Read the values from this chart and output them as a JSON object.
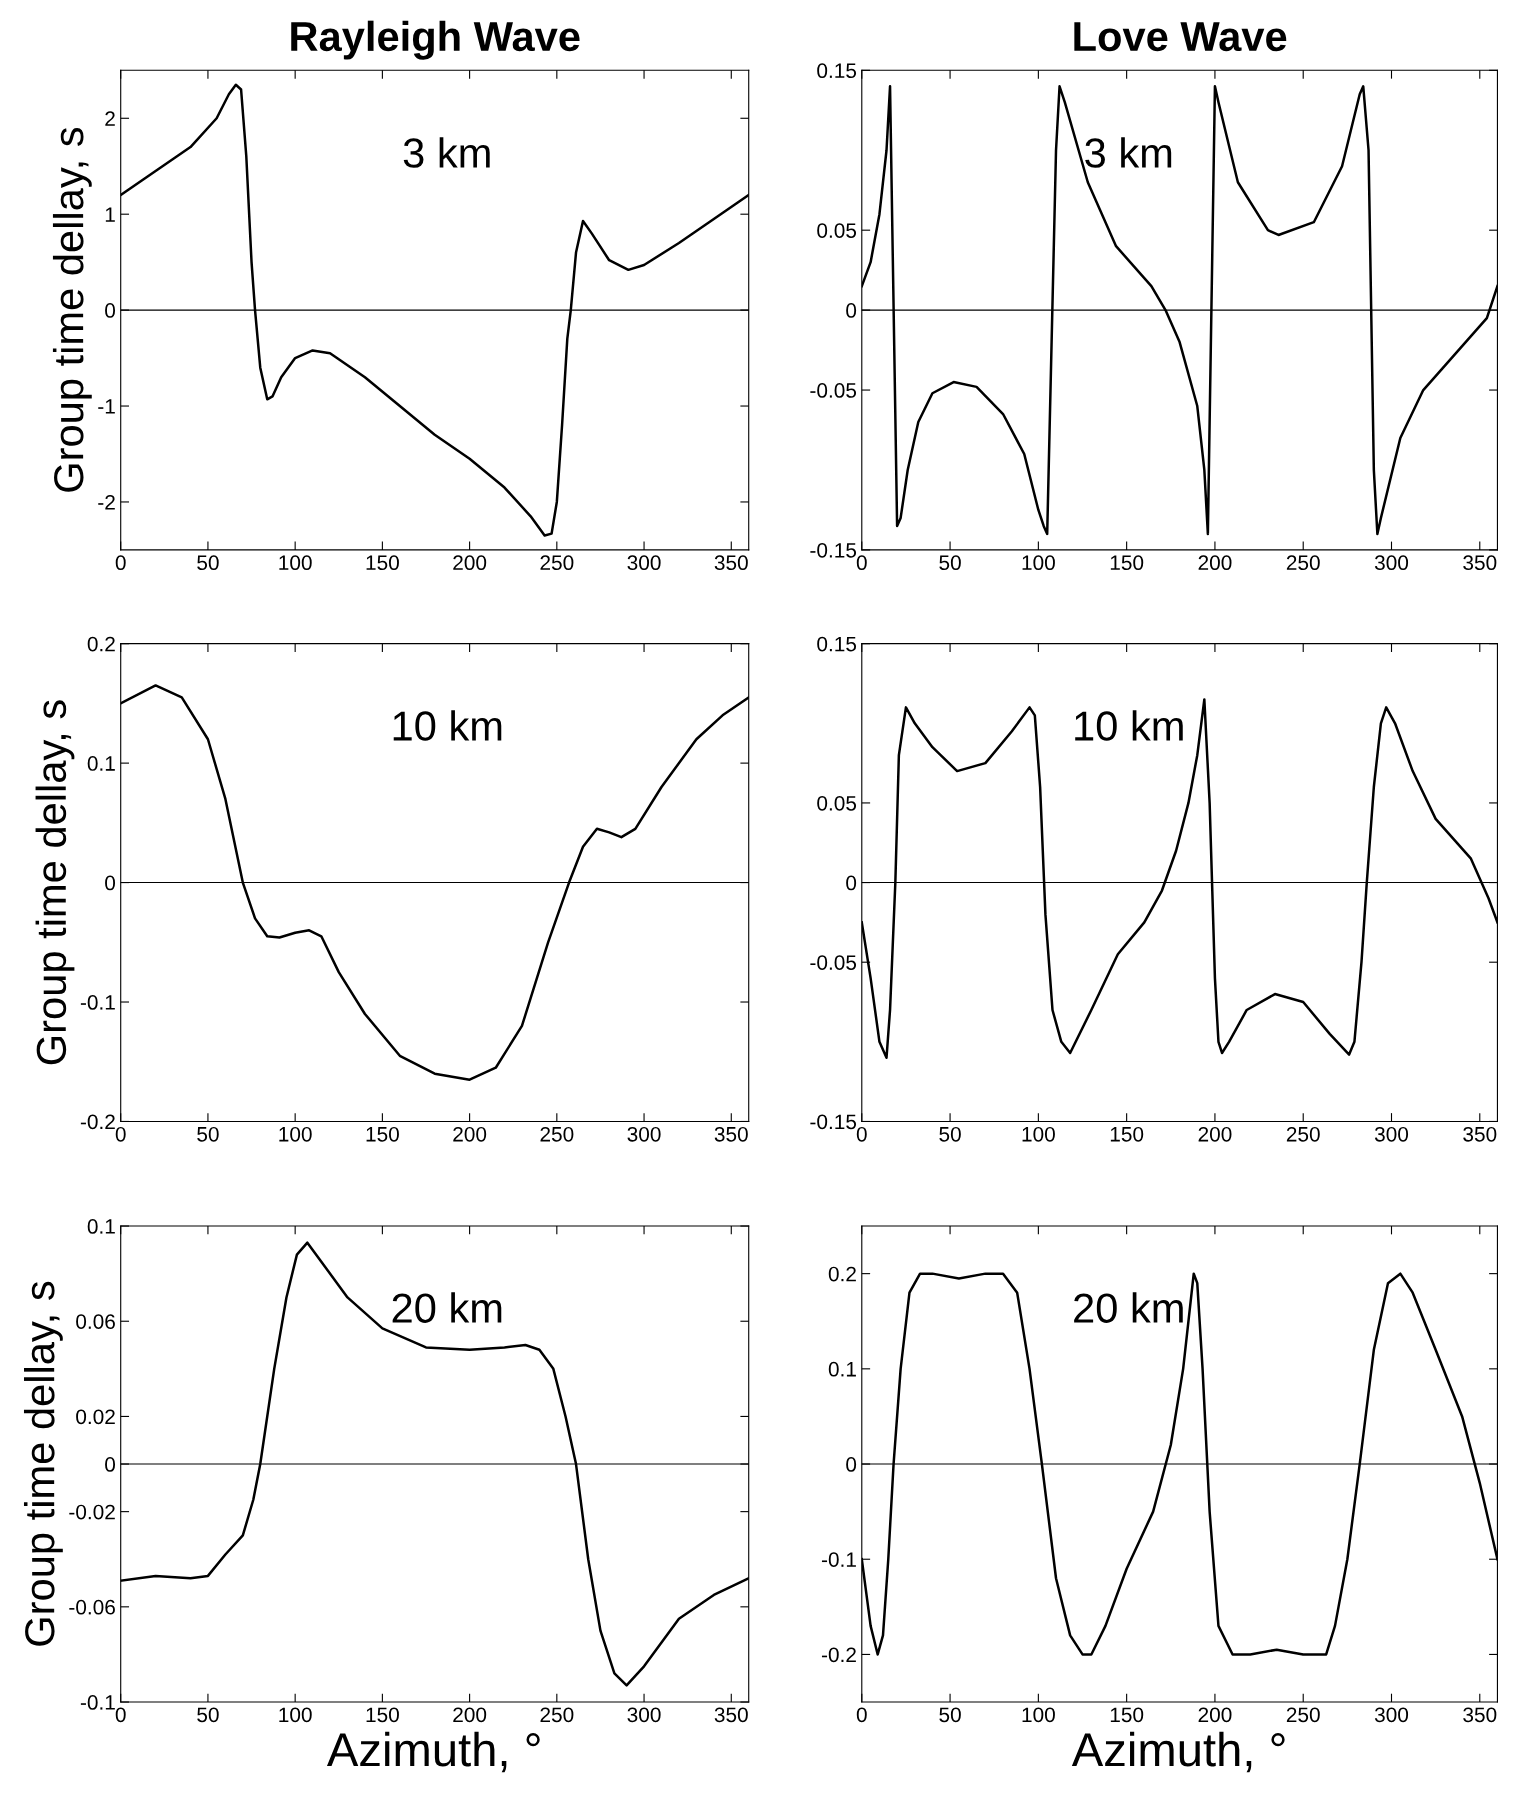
{
  "chart_data": [
    {
      "type": "line",
      "title": "Rayleigh Wave",
      "ylabel": "Group time dellay, s",
      "annotations": [
        "3 km"
      ],
      "xlim": [
        0,
        360
      ],
      "xticks": [
        0,
        50,
        100,
        150,
        200,
        250,
        300,
        350
      ],
      "ylim": [
        -2.5,
        2.5
      ],
      "yticks": [
        -2,
        -1,
        0,
        1,
        2
      ],
      "ref_lines": [
        {
          "axis": "y",
          "value": 0,
          "label": null
        }
      ],
      "series": [
        {
          "color": "#000000",
          "x": [
            0,
            20,
            40,
            55,
            62,
            66,
            69,
            72,
            75,
            77,
            80,
            84,
            87,
            92,
            100,
            110,
            120,
            140,
            160,
            180,
            200,
            220,
            235,
            243,
            247,
            250,
            253,
            256,
            258,
            261,
            265,
            270,
            280,
            291,
            300,
            320,
            340,
            360
          ],
          "values": [
            1.2,
            1.45,
            1.7,
            2.0,
            2.25,
            2.35,
            2.3,
            1.6,
            0.5,
            0.0,
            -0.6,
            -0.93,
            -0.9,
            -0.7,
            -0.5,
            -0.42,
            -0.45,
            -0.7,
            -1.0,
            -1.3,
            -1.55,
            -1.85,
            -2.15,
            -2.35,
            -2.33,
            -2.0,
            -1.2,
            -0.3,
            0.0,
            0.6,
            0.93,
            0.8,
            0.52,
            0.42,
            0.47,
            0.7,
            0.95,
            1.2
          ]
        }
      ]
    },
    {
      "type": "line",
      "title": "Love Wave",
      "annotations": [
        "3 km"
      ],
      "xlim": [
        0,
        360
      ],
      "xticks": [
        0,
        50,
        100,
        150,
        200,
        250,
        300,
        350
      ],
      "ylim": [
        -0.15,
        0.15
      ],
      "yticks": [
        -0.15,
        -0.05,
        0,
        0.05,
        0.15
      ],
      "ref_lines": [
        {
          "axis": "y",
          "value": 0,
          "label": null
        }
      ],
      "series": [
        {
          "color": "#000000",
          "x": [
            0,
            5,
            10,
            14,
            16,
            20,
            22,
            26,
            32,
            40,
            52,
            65,
            80,
            92,
            100,
            103,
            105,
            110,
            112,
            115,
            128,
            144,
            164,
            172,
            180,
            190,
            194,
            196,
            200,
            202,
            213,
            230,
            236,
            256,
            272,
            282,
            284,
            287,
            290,
            292,
            294,
            305,
            318,
            338,
            354,
            360
          ],
          "values": [
            0.015,
            0.03,
            0.06,
            0.1,
            0.14,
            -0.135,
            -0.13,
            -0.1,
            -0.07,
            -0.052,
            -0.045,
            -0.048,
            -0.065,
            -0.09,
            -0.125,
            -0.135,
            -0.14,
            0.1,
            0.14,
            0.13,
            0.08,
            0.04,
            0.015,
            0.0,
            -0.02,
            -0.06,
            -0.1,
            -0.14,
            0.14,
            0.13,
            0.08,
            0.05,
            0.047,
            0.055,
            0.09,
            0.135,
            0.14,
            0.1,
            -0.1,
            -0.14,
            -0.13,
            -0.08,
            -0.05,
            -0.025,
            -0.005,
            0.015
          ]
        }
      ]
    },
    {
      "type": "line",
      "ylabel": "Group time dellay, s",
      "annotations": [
        "10 km"
      ],
      "xlim": [
        0,
        360
      ],
      "xticks": [
        0,
        50,
        100,
        150,
        200,
        250,
        300,
        350
      ],
      "ylim": [
        -0.2,
        0.2
      ],
      "yticks": [
        -0.2,
        -0.1,
        0,
        0.1,
        0.2
      ],
      "ref_lines": [
        {
          "axis": "y",
          "value": 0,
          "label": null
        }
      ],
      "series": [
        {
          "color": "#000000",
          "x": [
            0,
            20,
            35,
            50,
            60,
            70,
            77,
            84,
            91,
            100,
            108,
            115,
            125,
            140,
            160,
            180,
            200,
            215,
            230,
            245,
            257,
            265,
            273,
            280,
            287,
            295,
            310,
            330,
            345,
            360
          ],
          "values": [
            0.15,
            0.165,
            0.155,
            0.12,
            0.07,
            0.0,
            -0.03,
            -0.045,
            -0.046,
            -0.042,
            -0.04,
            -0.045,
            -0.075,
            -0.11,
            -0.145,
            -0.16,
            -0.165,
            -0.155,
            -0.12,
            -0.05,
            0.0,
            0.03,
            0.045,
            0.042,
            0.038,
            0.045,
            0.08,
            0.12,
            0.14,
            0.155
          ]
        }
      ]
    },
    {
      "type": "line",
      "annotations": [
        "10 km"
      ],
      "xlim": [
        0,
        360
      ],
      "xticks": [
        0,
        50,
        100,
        150,
        200,
        250,
        300,
        350
      ],
      "ylim": [
        -0.15,
        0.15
      ],
      "yticks": [
        -0.15,
        -0.05,
        0,
        0.05,
        0.15
      ],
      "ref_lines": [
        {
          "axis": "y",
          "value": 0,
          "label": null
        }
      ],
      "series": [
        {
          "color": "#000000",
          "x": [
            0,
            5,
            10,
            14,
            16,
            19,
            21,
            25,
            30,
            40,
            54,
            70,
            85,
            95,
            98,
            101,
            104,
            108,
            113,
            118,
            130,
            145,
            160,
            170,
            178,
            185,
            190,
            194,
            197,
            200,
            202,
            204,
            208,
            218,
            234,
            250,
            265,
            276,
            279,
            283,
            286,
            290,
            294,
            297,
            302,
            312,
            325,
            345,
            355,
            360
          ],
          "values": [
            -0.025,
            -0.06,
            -0.1,
            -0.11,
            -0.08,
            0.0,
            0.08,
            0.11,
            0.1,
            0.085,
            0.07,
            0.075,
            0.095,
            0.11,
            0.105,
            0.06,
            -0.02,
            -0.08,
            -0.1,
            -0.107,
            -0.08,
            -0.045,
            -0.025,
            -0.005,
            0.02,
            0.05,
            0.08,
            0.115,
            0.05,
            -0.06,
            -0.1,
            -0.107,
            -0.1,
            -0.08,
            -0.07,
            -0.075,
            -0.095,
            -0.108,
            -0.1,
            -0.05,
            0.0,
            0.06,
            0.1,
            0.11,
            0.1,
            0.07,
            0.04,
            0.015,
            -0.01,
            -0.025
          ]
        }
      ]
    },
    {
      "type": "line",
      "ylabel": "Group time dellay, s",
      "xlabel": "Azimuth, °",
      "annotations": [
        "20 km"
      ],
      "xlim": [
        0,
        360
      ],
      "xticks": [
        0,
        50,
        100,
        150,
        200,
        250,
        300,
        350
      ],
      "ylim": [
        -0.1,
        0.1
      ],
      "yticks": [
        -0.1,
        -0.06,
        -0.02,
        0,
        0.02,
        0.06,
        0.1
      ],
      "ref_lines": [
        {
          "axis": "y",
          "value": 0,
          "label": null
        }
      ],
      "series": [
        {
          "color": "#000000",
          "x": [
            0,
            20,
            40,
            50,
            60,
            70,
            76,
            80,
            88,
            95,
            101,
            107,
            115,
            130,
            150,
            175,
            200,
            220,
            232,
            240,
            248,
            255,
            261,
            268,
            275,
            283,
            290,
            300,
            320,
            340,
            360
          ],
          "values": [
            -0.049,
            -0.047,
            -0.048,
            -0.047,
            -0.038,
            -0.03,
            -0.015,
            0.0,
            0.04,
            0.07,
            0.088,
            0.093,
            0.085,
            0.07,
            0.057,
            0.049,
            0.048,
            0.049,
            0.05,
            0.048,
            0.04,
            0.02,
            0.0,
            -0.04,
            -0.07,
            -0.088,
            -0.093,
            -0.085,
            -0.065,
            -0.055,
            -0.048
          ]
        }
      ]
    },
    {
      "type": "line",
      "xlabel": "Azimuth, °",
      "annotations": [
        "20 km"
      ],
      "xlim": [
        0,
        360
      ],
      "xticks": [
        0,
        50,
        100,
        150,
        200,
        250,
        300,
        350
      ],
      "ylim": [
        -0.25,
        0.25
      ],
      "yticks": [
        -0.2,
        -0.1,
        0,
        0.1,
        0.2
      ],
      "ref_lines": [
        {
          "axis": "y",
          "value": 0,
          "label": null
        }
      ],
      "series": [
        {
          "color": "#000000",
          "x": [
            0,
            5,
            9,
            12,
            15,
            18,
            22,
            27,
            33,
            40,
            55,
            70,
            80,
            88,
            95,
            102,
            110,
            118,
            125,
            130,
            138,
            150,
            165,
            175,
            182,
            188,
            190,
            193,
            197,
            202,
            210,
            220,
            235,
            250,
            263,
            268,
            275,
            282,
            290,
            298,
            305,
            312,
            325,
            340,
            350,
            360
          ],
          "values": [
            -0.1,
            -0.17,
            -0.2,
            -0.18,
            -0.1,
            0.0,
            0.1,
            0.18,
            0.2,
            0.2,
            0.195,
            0.2,
            0.2,
            0.18,
            0.1,
            0.0,
            -0.12,
            -0.18,
            -0.2,
            -0.2,
            -0.17,
            -0.11,
            -0.05,
            0.02,
            0.1,
            0.2,
            0.19,
            0.1,
            -0.05,
            -0.17,
            -0.2,
            -0.2,
            -0.195,
            -0.2,
            -0.2,
            -0.17,
            -0.1,
            0.0,
            0.12,
            0.19,
            0.2,
            0.18,
            0.12,
            0.05,
            -0.02,
            -0.1
          ]
        }
      ]
    }
  ]
}
